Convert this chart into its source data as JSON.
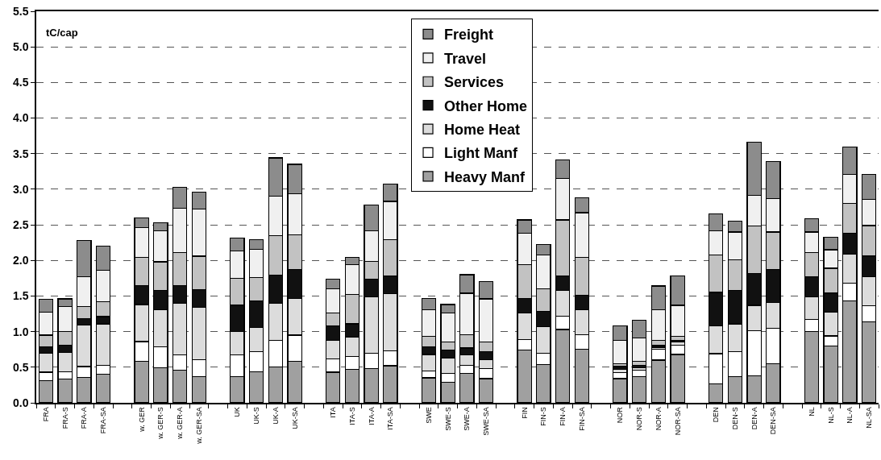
{
  "chart_data": {
    "type": "bar",
    "stacked": true,
    "ylabel": "tC/cap",
    "categories": [
      "FRA",
      "FRA-S",
      "FRA-A",
      "FRA-SA",
      null,
      "w. GER",
      "w. GER-S",
      "w. GER-A",
      "w. GER-SA",
      null,
      "UK",
      "UK-S",
      "UK-A",
      "UK-SA",
      null,
      "ITA",
      "ITA-S",
      "ITA-A",
      "ITA-SA",
      null,
      "SWE",
      "SWE-S",
      "SWE-A",
      "SWE-SA",
      null,
      "FIN",
      "FIN-S",
      "FIN-A",
      "FIN-SA",
      null,
      "NOR",
      "NOR-S",
      "NOR-A",
      "NOR-SA",
      null,
      "DEN",
      "DEN-S",
      "DEN-A",
      "DEN-SA",
      null,
      "NL",
      "NL-S",
      "NL-A",
      "NL-SA"
    ],
    "series": [
      {
        "name": "Heavy Manf",
        "color": "#a0a0a0",
        "values": [
          0.31,
          0.33,
          0.36,
          0.4,
          null,
          0.58,
          0.49,
          0.46,
          0.37,
          null,
          0.37,
          0.44,
          0.5,
          0.58,
          null,
          0.43,
          0.47,
          0.48,
          0.52,
          null,
          0.35,
          0.29,
          0.41,
          0.34,
          null,
          0.74,
          0.54,
          1.03,
          0.75,
          null,
          0.34,
          0.37,
          0.6,
          0.68,
          null,
          0.27,
          0.37,
          0.38,
          0.55,
          null,
          1.0,
          0.8,
          1.43,
          1.14
        ]
      },
      {
        "name": "Light Manf",
        "color": "#ffffff",
        "values": [
          0.12,
          0.11,
          0.15,
          0.13,
          null,
          0.28,
          0.3,
          0.21,
          0.24,
          null,
          0.3,
          0.28,
          0.38,
          0.37,
          null,
          0.19,
          0.18,
          0.22,
          0.21,
          null,
          0.1,
          0.12,
          0.12,
          0.14,
          null,
          0.15,
          0.16,
          0.19,
          0.21,
          null,
          0.08,
          0.09,
          0.15,
          0.13,
          null,
          0.42,
          0.35,
          0.63,
          0.5,
          null,
          0.17,
          0.14,
          0.25,
          0.22
        ]
      },
      {
        "name": "Home Heat",
        "color": "#dcdcdc",
        "values": [
          0.27,
          0.27,
          0.58,
          0.58,
          null,
          0.52,
          0.52,
          0.73,
          0.73,
          null,
          0.33,
          0.34,
          0.52,
          0.52,
          null,
          0.26,
          0.27,
          0.79,
          0.8,
          null,
          0.23,
          0.22,
          0.14,
          0.13,
          null,
          0.37,
          0.37,
          0.36,
          0.35,
          null,
          0.05,
          0.03,
          0.03,
          0.04,
          null,
          0.39,
          0.39,
          0.36,
          0.36,
          null,
          0.32,
          0.33,
          0.41,
          0.41
        ]
      },
      {
        "name": "Other Home",
        "color": "#111111",
        "values": [
          0.09,
          0.1,
          0.09,
          0.1,
          null,
          0.27,
          0.27,
          0.25,
          0.25,
          null,
          0.37,
          0.37,
          0.39,
          0.4,
          null,
          0.2,
          0.19,
          0.25,
          0.25,
          null,
          0.11,
          0.11,
          0.1,
          0.11,
          null,
          0.21,
          0.21,
          0.2,
          0.2,
          null,
          0.04,
          0.04,
          0.03,
          0.03,
          null,
          0.47,
          0.47,
          0.45,
          0.46,
          null,
          0.28,
          0.27,
          0.29,
          0.29
        ]
      },
      {
        "name": "Services",
        "color": "#c2c2c2",
        "values": [
          0.16,
          0.19,
          0.17,
          0.21,
          null,
          0.39,
          0.4,
          0.46,
          0.47,
          null,
          0.38,
          0.33,
          0.56,
          0.49,
          null,
          0.18,
          0.41,
          0.25,
          0.51,
          null,
          0.14,
          0.11,
          0.19,
          0.13,
          null,
          0.47,
          0.32,
          0.79,
          0.53,
          null,
          0.04,
          0.05,
          0.07,
          0.05,
          null,
          0.53,
          0.43,
          0.66,
          0.53,
          null,
          0.34,
          0.35,
          0.42,
          0.43
        ]
      },
      {
        "name": "Travel",
        "color": "#f0f0f0",
        "values": [
          0.32,
          0.35,
          0.42,
          0.44,
          null,
          0.42,
          0.44,
          0.62,
          0.66,
          null,
          0.38,
          0.4,
          0.55,
          0.58,
          null,
          0.34,
          0.42,
          0.43,
          0.54,
          null,
          0.38,
          0.41,
          0.58,
          0.61,
          null,
          0.44,
          0.48,
          0.58,
          0.63,
          null,
          0.33,
          0.33,
          0.43,
          0.44,
          null,
          0.34,
          0.39,
          0.43,
          0.47,
          null,
          0.29,
          0.26,
          0.41,
          0.37
        ]
      },
      {
        "name": "Freight",
        "color": "#8c8c8c",
        "values": [
          0.18,
          0.11,
          0.51,
          0.34,
          null,
          0.14,
          0.11,
          0.3,
          0.24,
          null,
          0.18,
          0.13,
          0.54,
          0.41,
          null,
          0.14,
          0.1,
          0.36,
          0.24,
          null,
          0.16,
          0.12,
          0.26,
          0.24,
          null,
          0.19,
          0.14,
          0.26,
          0.21,
          null,
          0.2,
          0.25,
          0.33,
          0.41,
          null,
          0.23,
          0.15,
          0.75,
          0.52,
          null,
          0.19,
          0.18,
          0.38,
          0.35
        ]
      }
    ],
    "ylim": [
      0,
      5.5
    ],
    "yticks": [
      {
        "value": 0,
        "label": "0.0"
      },
      {
        "value": 0.5,
        "label": "0.5"
      },
      {
        "value": 1,
        "label": "1.0"
      },
      {
        "value": 1.5,
        "label": "1.5"
      },
      {
        "value": 2,
        "label": "2.0"
      },
      {
        "value": 2.5,
        "label": "2.5"
      },
      {
        "value": 3,
        "label": "3.0"
      },
      {
        "value": 3.5,
        "label": "3.5"
      },
      {
        "value": 4,
        "label": "4.0"
      },
      {
        "value": 4.5,
        "label": "4.5"
      },
      {
        "value": 5,
        "label": "5.0"
      },
      {
        "value": 5.5,
        "label": "5.5"
      }
    ],
    "grid": "y",
    "legend": "top"
  }
}
